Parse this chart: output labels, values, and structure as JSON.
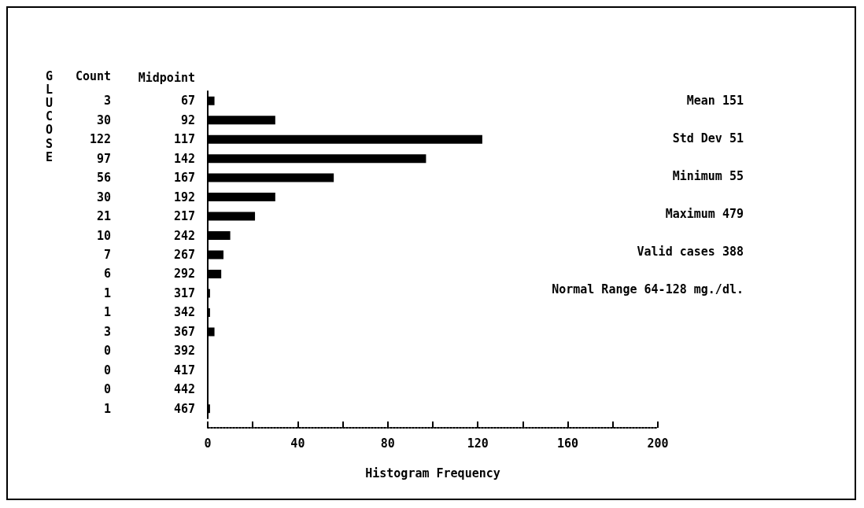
{
  "chart_data": {
    "type": "bar",
    "orientation": "horizontal",
    "title": "GLUCOSE",
    "ylabel": "Midpoint",
    "xlabel": "Histogram Frequency",
    "categories": [
      "67",
      "92",
      "117",
      "142",
      "167",
      "192",
      "217",
      "242",
      "267",
      "292",
      "317",
      "342",
      "367",
      "392",
      "417",
      "442",
      "467"
    ],
    "values": [
      3,
      30,
      122,
      97,
      56,
      30,
      21,
      10,
      7,
      6,
      1,
      1,
      3,
      0,
      0,
      0,
      1
    ],
    "color": "#000000",
    "data_labels": true,
    "xlim": [
      0,
      200
    ],
    "xticks": [
      0,
      {
        "value": 20,
        "label": null
      },
      40,
      {
        "value": 60,
        "label": null
      },
      80,
      {
        "value": 100,
        "label": null
      },
      120,
      {
        "value": 140,
        "label": null
      },
      160,
      {
        "value": 180,
        "label": null
      },
      200
    ],
    "grid": false,
    "annotations": [
      "Count",
      "Mean 151",
      "Std Dev 51",
      "Minimum 55",
      "Maximum 479",
      "Valid cases 388",
      "Normal Range 64-128 mg./dl."
    ]
  }
}
